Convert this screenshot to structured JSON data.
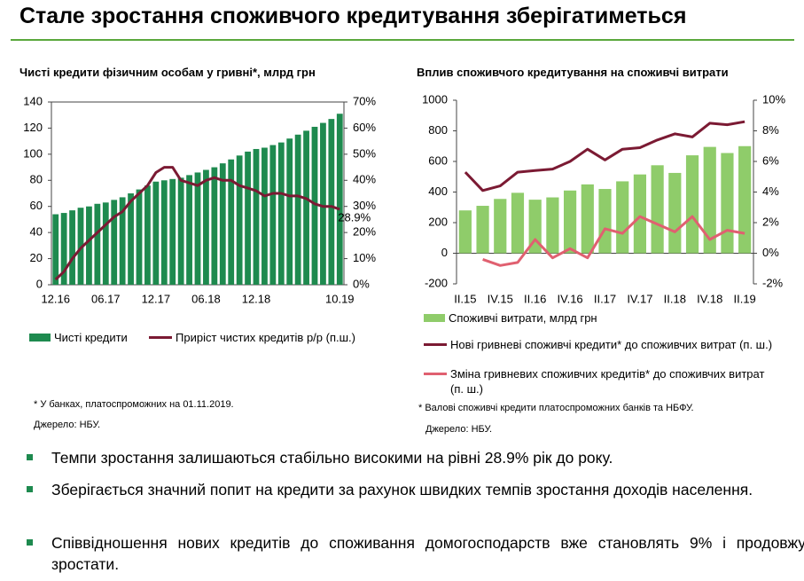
{
  "title": "Стале зростання споживчого кредитування зберігатиметься",
  "chart_data": [
    {
      "type": "bar",
      "title": "Чисті кредити фізичним особам у гривні*, млрд грн",
      "categories": [
        "12.16",
        null,
        null,
        null,
        null,
        null,
        "06.17",
        null,
        null,
        null,
        null,
        null,
        "12.17",
        null,
        null,
        null,
        null,
        null,
        "06.18",
        null,
        null,
        null,
        null,
        null,
        "12.18",
        null,
        null,
        null,
        null,
        null,
        null,
        null,
        null,
        null,
        "10.19"
      ],
      "series": [
        {
          "name": "Чисті кредити",
          "kind": "bar",
          "color": "#1e8a4f",
          "values": [
            54,
            55,
            57,
            59,
            60,
            62,
            63,
            65,
            67,
            70,
            73,
            76,
            79,
            80,
            81,
            82,
            84,
            86,
            88,
            90,
            93,
            96,
            99,
            102,
            104,
            105,
            107,
            109,
            112,
            115,
            118,
            121,
            124,
            127,
            131
          ]
        },
        {
          "name": "Приріст чистих кредитів р/р (п.ш.)",
          "kind": "line",
          "axis": "y2",
          "color": "#7b1a33",
          "values": [
            2,
            5,
            10,
            14,
            17,
            20,
            23,
            26,
            28,
            32,
            35,
            38,
            43,
            45,
            45,
            40,
            39,
            38,
            40,
            41,
            40,
            40,
            38,
            37,
            36,
            34,
            35,
            35,
            34,
            34,
            33,
            31,
            30,
            30,
            28.9
          ],
          "value_labels": [
            null,
            null,
            null,
            null,
            null,
            null,
            null,
            null,
            null,
            null,
            null,
            null,
            null,
            null,
            null,
            null,
            null,
            null,
            null,
            null,
            null,
            null,
            null,
            null,
            null,
            null,
            null,
            null,
            null,
            null,
            null,
            null,
            null,
            null,
            "28.9%"
          ]
        }
      ],
      "ylim": [
        0,
        140
      ],
      "yticks": [
        0,
        20,
        40,
        60,
        80,
        100,
        120,
        140
      ],
      "y2lim": [
        0,
        70
      ],
      "y2ticks": [
        {
          "value": 0,
          "label": "0%"
        },
        {
          "value": 10,
          "label": "10%"
        },
        {
          "value": 20,
          "label": "20%"
        },
        {
          "value": 30,
          "label": "30%"
        },
        {
          "value": 40,
          "label": "40%"
        },
        {
          "value": 50,
          "label": "50%"
        },
        {
          "value": 60,
          "label": "60%"
        },
        {
          "value": 70,
          "label": "70%"
        }
      ],
      "grid": false,
      "frame": true
    },
    {
      "type": "bar",
      "title": "Вплив  споживчого кредитування на споживчі витрати",
      "categories": [
        "II.15",
        null,
        "IV.15",
        null,
        "II.16",
        null,
        "IV.16",
        null,
        "II.17",
        null,
        "IV.17",
        null,
        "II.18",
        null,
        "IV.18",
        null,
        "II.19"
      ],
      "series": [
        {
          "name": "Споживчі витрати, млрд грн",
          "kind": "bar",
          "color": "#8fcc6a",
          "values": [
            280,
            310,
            355,
            395,
            350,
            365,
            410,
            450,
            420,
            470,
            515,
            575,
            525,
            640,
            695,
            655,
            700
          ]
        },
        {
          "name": "Нові гривневі споживчі кредити* до споживчих витрат (п. ш.)",
          "kind": "line",
          "axis": "y2",
          "color": "#7b1a33",
          "values": [
            5.3,
            4.1,
            4.4,
            5.3,
            5.4,
            5.5,
            6.0,
            6.8,
            6.1,
            6.8,
            6.9,
            7.4,
            7.8,
            7.6,
            8.5,
            8.4,
            8.6
          ]
        },
        {
          "name": "Зміна гривневих споживчих кредитів* до споживчих витрат  (п. ш.)",
          "kind": "line",
          "axis": "y2",
          "color": "#e06070",
          "values": [
            null,
            -0.4,
            -0.8,
            -0.6,
            0.9,
            -0.3,
            0.3,
            -0.3,
            1.6,
            1.3,
            2.4,
            1.9,
            1.4,
            2.4,
            0.9,
            1.5,
            1.3
          ]
        }
      ],
      "ylim": [
        -200,
        1000
      ],
      "yticks": [
        -200,
        0,
        200,
        400,
        600,
        800,
        1000
      ],
      "y2lim": [
        -2,
        10
      ],
      "y2ticks": [
        {
          "value": -2,
          "label": "-2%"
        },
        {
          "value": 0,
          "label": "0%"
        },
        {
          "value": 2,
          "label": "2%"
        },
        {
          "value": 4,
          "label": "4%"
        },
        {
          "value": 6,
          "label": "6%"
        },
        {
          "value": 8,
          "label": "8%"
        },
        {
          "value": 10,
          "label": "10%"
        }
      ],
      "grid": false,
      "frame": false
    }
  ],
  "notes": [
    [
      "* У банках, платоспроможних на 01.11.2019.",
      "Джерело: НБУ."
    ],
    [
      "* Валові споживчі кредити платоспроможних банків та НБФУ.",
      "Джерело: НБУ."
    ]
  ],
  "bullets": [
    "Темпи зростання залишаються стабільно високими на рівні 28.9% рік до року.",
    "Зберігається значний попит на кредити за рахунок швидких темпів зростання доходів населення.",
    "Співвідношення нових кредитів до споживання домогосподарств вже становлять 9% і продовжує зростати."
  ]
}
